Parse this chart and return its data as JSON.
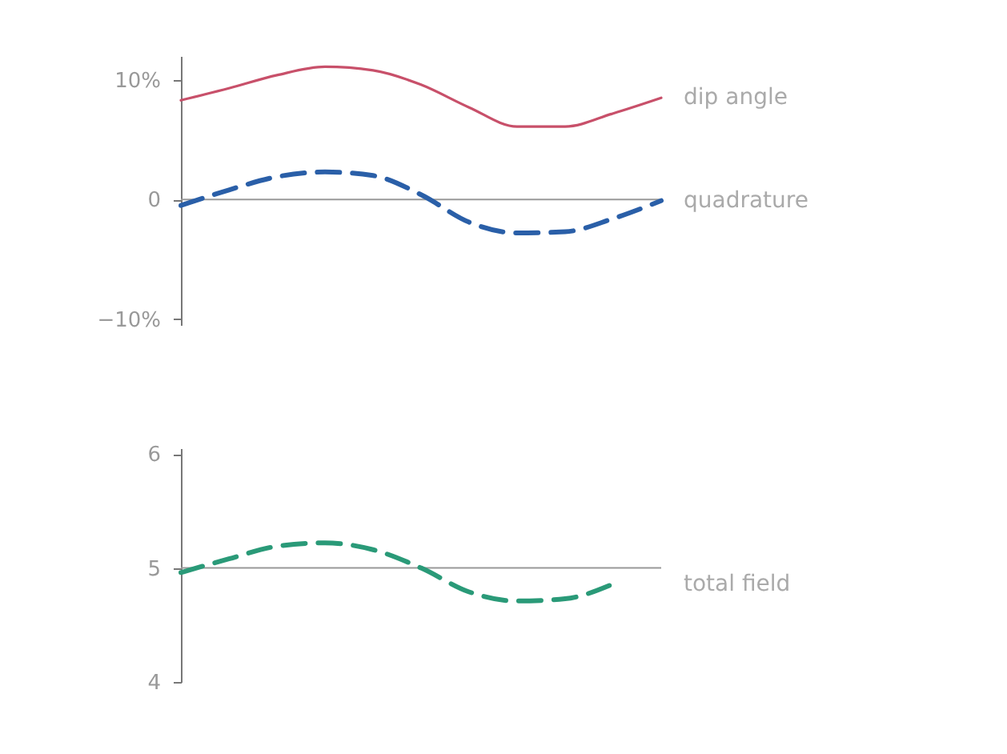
{
  "chart_data": [
    {
      "type": "line",
      "categories": [
        null,
        null,
        null,
        null,
        null,
        null,
        null,
        null,
        null,
        null,
        null
      ],
      "ylim": [
        -10.5,
        12
      ],
      "yticks": [
        {
          "value": 10,
          "label": "10%"
        },
        0,
        {
          "value": -10,
          "label": "−10%"
        }
      ],
      "grid": false,
      "tick_labels": "y",
      "ref_lines": [
        {
          "axis": "y",
          "value": 0,
          "color": "#999999"
        }
      ],
      "series": [
        {
          "name": "dip angle",
          "color": "#c8506a",
          "line_style": "solid",
          "values": [
            8.3,
            9.3,
            10.4,
            11.1,
            10.8,
            9.6,
            7.7,
            6.1,
            6.1,
            7.2,
            8.5
          ]
        },
        {
          "name": "quadrature",
          "color": "#2a5fa8",
          "line_style": "dashed",
          "values": [
            -0.5,
            0.8,
            1.9,
            2.3,
            2.0,
            0.4,
            -1.9,
            -2.8,
            -2.7,
            -1.6,
            -0.1
          ]
        }
      ]
    },
    {
      "type": "line",
      "categories": [
        null,
        null,
        null,
        null,
        null,
        null,
        null,
        null,
        null,
        null,
        null
      ],
      "ylim": [
        4,
        6.05
      ],
      "yticks": [
        4,
        5,
        6
      ],
      "grid": false,
      "tick_labels": "y",
      "ref_lines": [
        {
          "axis": "y",
          "value": 5,
          "color": "#999999"
        }
      ],
      "series": [
        {
          "name": "total field",
          "color": "#2a9a78",
          "line_style": "dashed",
          "values": [
            4.96,
            5.08,
            5.19,
            5.22,
            5.16,
            5.0,
            4.79,
            4.71,
            4.73,
            4.86,
            null
          ]
        }
      ]
    }
  ]
}
